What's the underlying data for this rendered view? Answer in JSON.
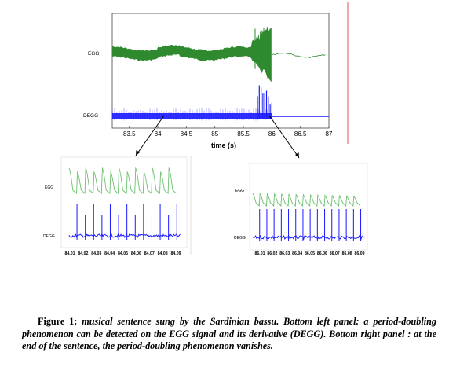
{
  "chart_data": [
    {
      "type": "line",
      "panel": "top",
      "xlabel": "time  (s)",
      "x_ticks": [
        "83.5",
        "84",
        "84.5",
        "85",
        "85.5",
        "86",
        "86.5",
        "87"
      ],
      "xlim": [
        83.2,
        87.0
      ],
      "series": [
        {
          "name": "EGG",
          "color": "#2f8a2f"
        },
        {
          "name": "DEGG",
          "color": "#1a1aff"
        }
      ]
    },
    {
      "type": "line",
      "panel": "bottom-left",
      "x_ticks": [
        "84.01",
        "84.02",
        "84.03",
        "84.04",
        "84.05",
        "84.06",
        "84.07",
        "84.08",
        "84.09"
      ],
      "series": [
        {
          "name": "EGG",
          "color": "#6cbf6c"
        },
        {
          "name": "DEGG",
          "color": "#1a1aff"
        }
      ]
    },
    {
      "type": "line",
      "panel": "bottom-right",
      "x_ticks": [
        "86.01",
        "86.02",
        "86.03",
        "86.04",
        "86.05",
        "86.06",
        "86.07",
        "86.08",
        "86.09"
      ],
      "series": [
        {
          "name": "EGG",
          "color": "#6cbf6c"
        },
        {
          "name": "DEGG",
          "color": "#1a1aff"
        }
      ]
    }
  ],
  "caption": {
    "label": "Figure 1:",
    "text": "musical sentence sung by the Sardinian bassu. Bottom left panel: a period-doubling phenomenon can be detected on the EGG signal and its derivative (DEGG). Bottom right panel : at the end of the sentence, the period-doubling phenomenon vanishes."
  }
}
